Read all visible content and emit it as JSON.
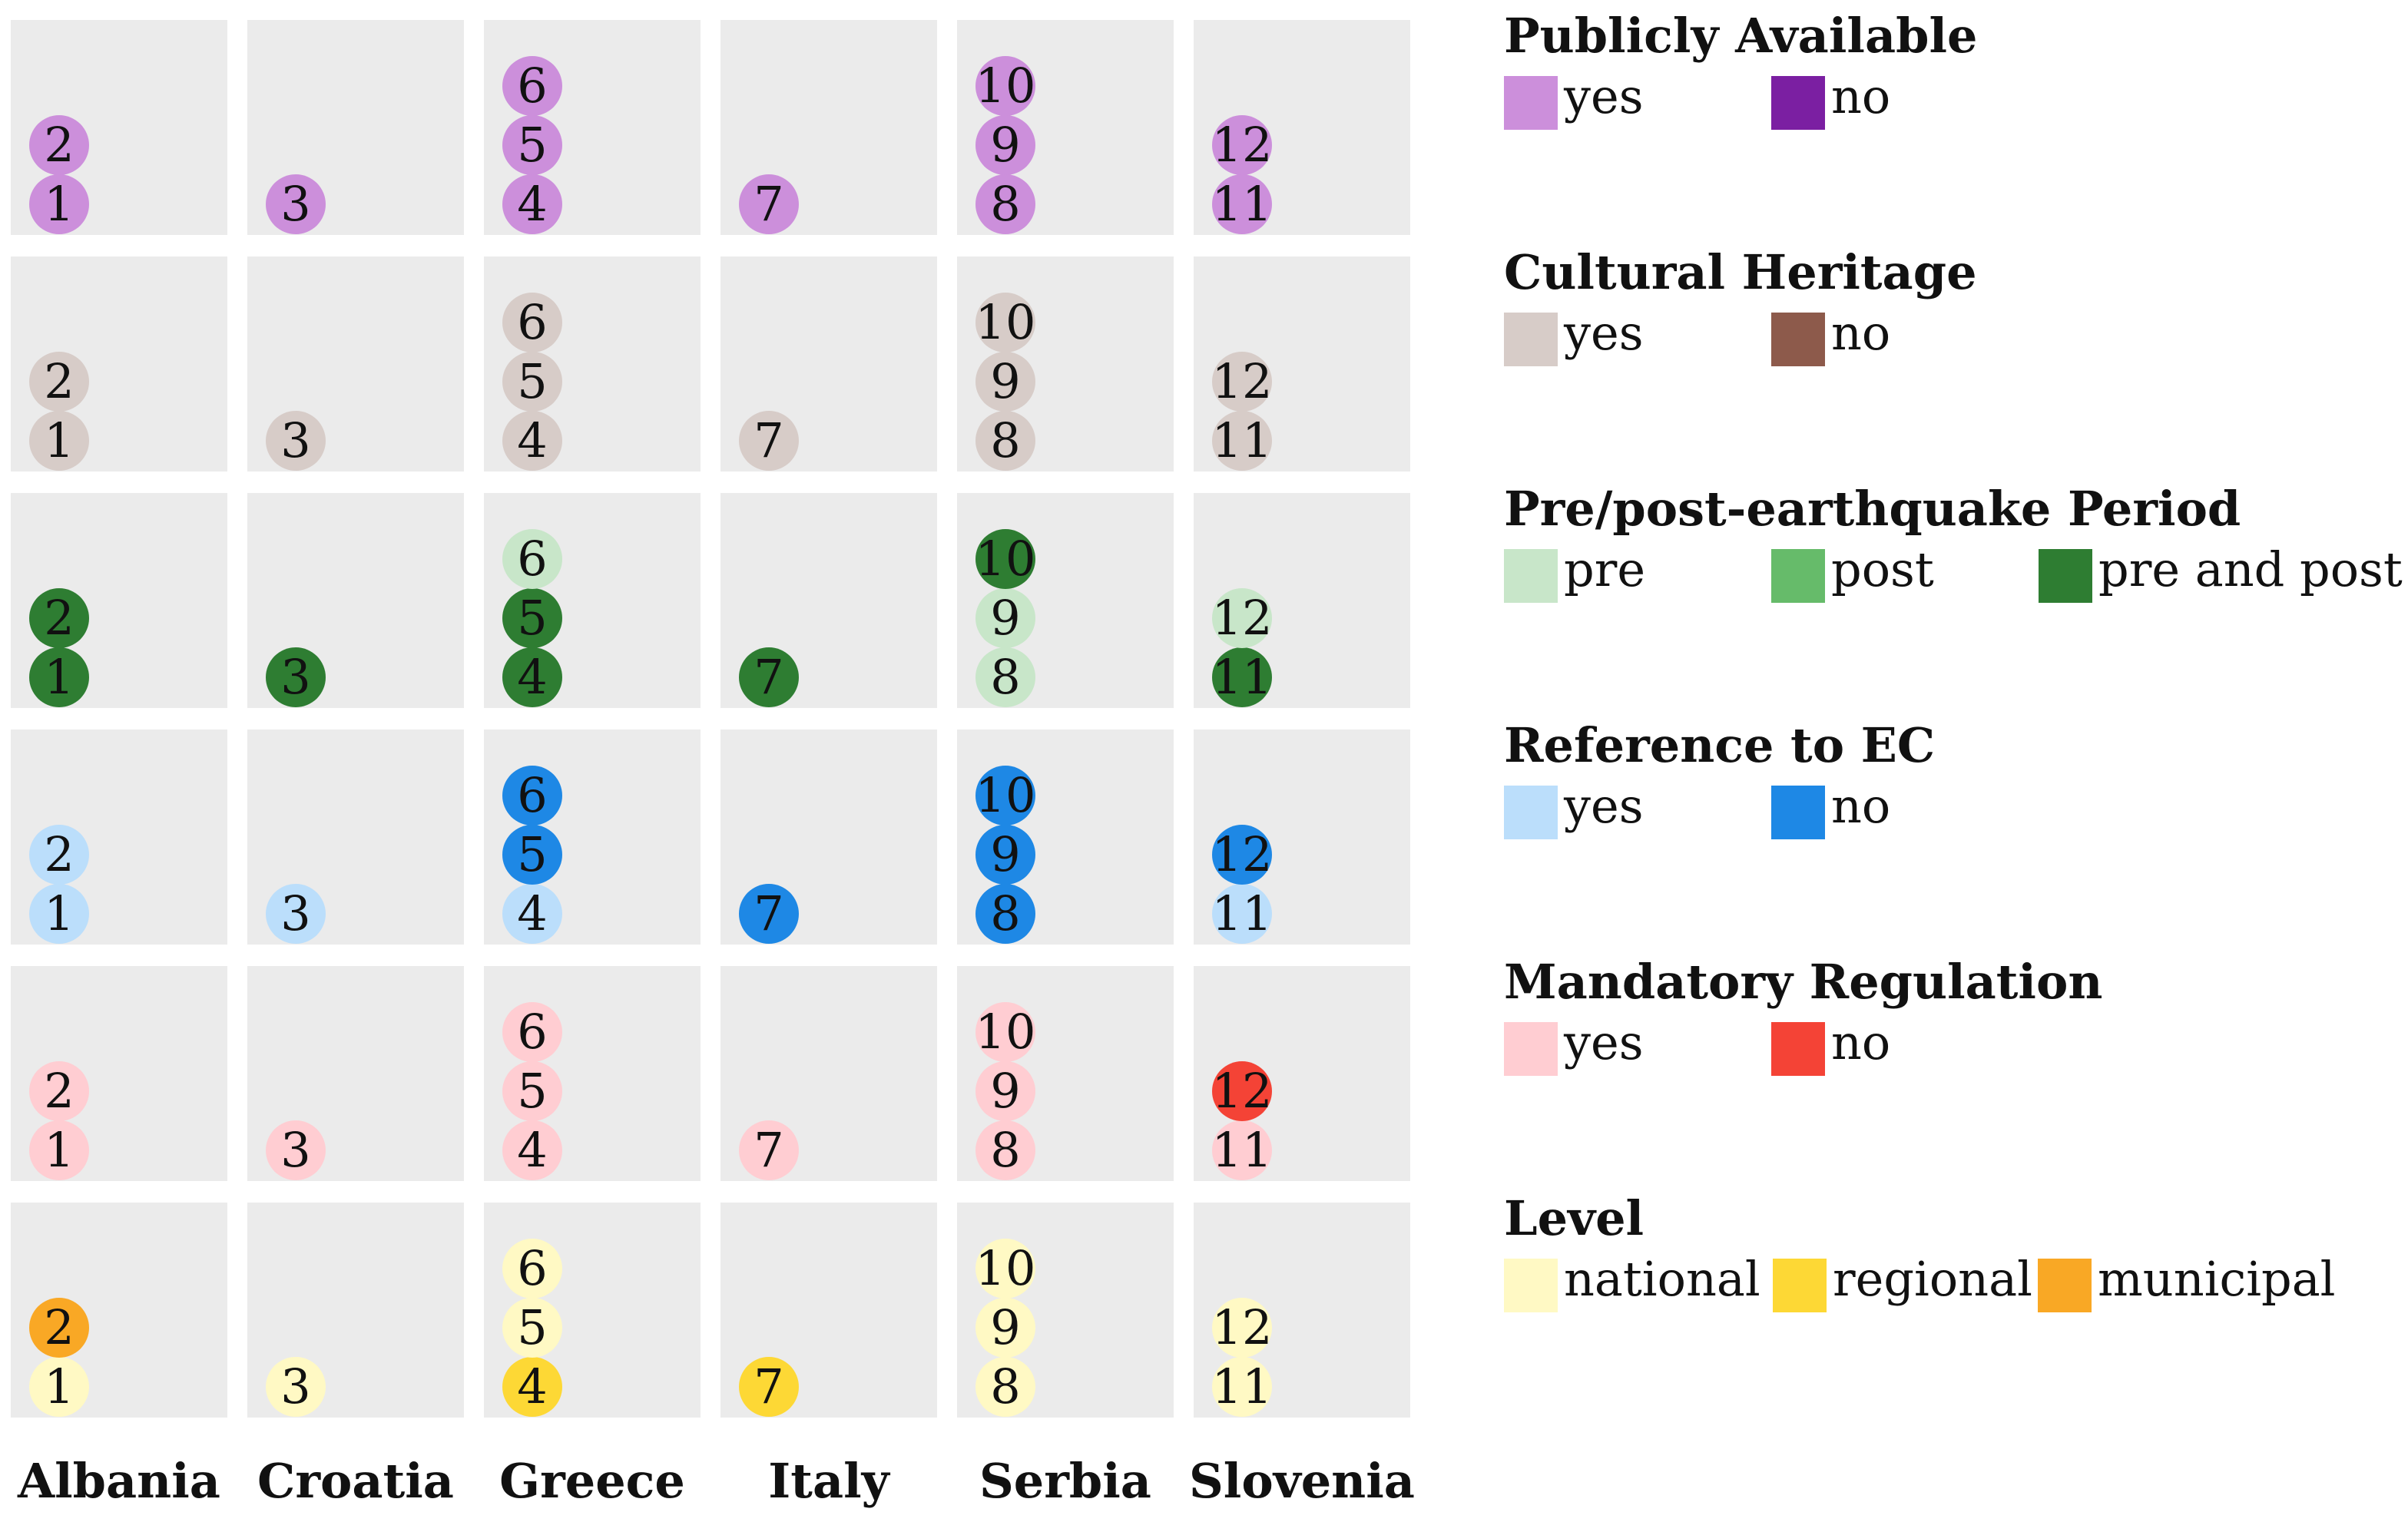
{
  "countries": [
    "Albania",
    "Croatia",
    "Greece",
    "Italy",
    "Serbia",
    "Slovenia"
  ],
  "documents": [
    [
      "1",
      "2"
    ],
    [
      "3"
    ],
    [
      "4",
      "5",
      "6"
    ],
    [
      "7"
    ],
    [
      "8",
      "9",
      "10"
    ],
    [
      "11",
      "12"
    ]
  ],
  "categories": [
    {
      "title": "Publicly Available",
      "legend": [
        {
          "label": "yes",
          "color": "#cc8fdb"
        },
        {
          "label": "no",
          "color": "#7b1fa2"
        }
      ],
      "values": [
        [
          0,
          0
        ],
        [
          0
        ],
        [
          0,
          0,
          0
        ],
        [
          0
        ],
        [
          0,
          0,
          0
        ],
        [
          0,
          0
        ]
      ]
    },
    {
      "title": "Cultural Heritage",
      "legend": [
        {
          "label": "yes",
          "color": "#d7ccc8"
        },
        {
          "label": "no",
          "color": "#8d5a4b"
        }
      ],
      "values": [
        [
          0,
          0
        ],
        [
          0
        ],
        [
          0,
          0,
          0
        ],
        [
          0
        ],
        [
          0,
          0,
          0
        ],
        [
          0,
          0
        ]
      ]
    },
    {
      "title": "Pre/post-earthquake Period",
      "legend": [
        {
          "label": "pre",
          "color": "#c8e6c9"
        },
        {
          "label": "post",
          "color": "#66bb6a"
        },
        {
          "label": "pre and post",
          "color": "#2e7d32"
        }
      ],
      "values": [
        [
          2,
          2
        ],
        [
          2
        ],
        [
          2,
          2,
          0
        ],
        [
          2
        ],
        [
          0,
          0,
          2
        ],
        [
          2,
          0
        ]
      ]
    },
    {
      "title": "Reference to EC",
      "legend": [
        {
          "label": "yes",
          "color": "#bbdefb"
        },
        {
          "label": "no",
          "color": "#1e88e5"
        }
      ],
      "values": [
        [
          0,
          0
        ],
        [
          0
        ],
        [
          0,
          1,
          1
        ],
        [
          1
        ],
        [
          1,
          1,
          1
        ],
        [
          0,
          1
        ]
      ]
    },
    {
      "title": "Mandatory Regulation",
      "legend": [
        {
          "label": "yes",
          "color": "#ffcdd2"
        },
        {
          "label": "no",
          "color": "#f44336"
        }
      ],
      "values": [
        [
          0,
          0
        ],
        [
          0
        ],
        [
          0,
          0,
          0
        ],
        [
          0
        ],
        [
          0,
          0,
          0
        ],
        [
          0,
          1
        ]
      ]
    },
    {
      "title": "Level",
      "legend": [
        {
          "label": "national",
          "color": "#fff9c4"
        },
        {
          "label": "regional",
          "color": "#fdd835"
        },
        {
          "label": "municipal",
          "color": "#f9a825"
        }
      ],
      "values": [
        [
          0,
          2
        ],
        [
          0
        ],
        [
          1,
          0,
          0
        ],
        [
          1
        ],
        [
          0,
          0,
          0
        ],
        [
          0,
          0
        ]
      ]
    }
  ]
}
